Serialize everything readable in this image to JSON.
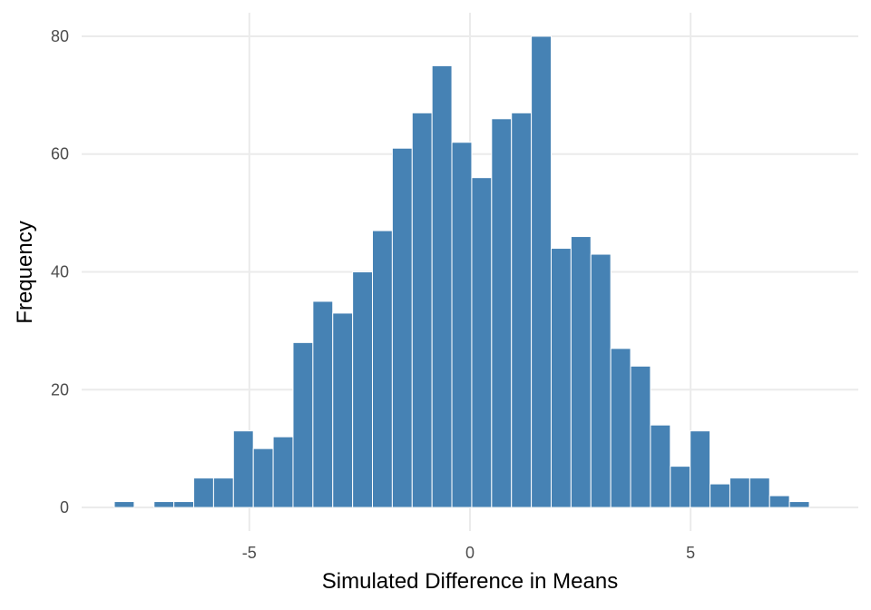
{
  "chart_data": {
    "type": "bar",
    "title": "",
    "xlabel": "Simulated Difference in Means",
    "ylabel": "Frequency",
    "bin_width": 0.45,
    "bins": [
      {
        "x": -8.06,
        "count": 1
      },
      {
        "x": -7.61,
        "count": 0
      },
      {
        "x": -7.16,
        "count": 1
      },
      {
        "x": -6.71,
        "count": 1
      },
      {
        "x": -6.26,
        "count": 5
      },
      {
        "x": -5.81,
        "count": 5
      },
      {
        "x": -5.36,
        "count": 13
      },
      {
        "x": -4.91,
        "count": 10
      },
      {
        "x": -4.46,
        "count": 12
      },
      {
        "x": -4.01,
        "count": 28
      },
      {
        "x": -3.56,
        "count": 35
      },
      {
        "x": -3.11,
        "count": 33
      },
      {
        "x": -2.66,
        "count": 40
      },
      {
        "x": -2.21,
        "count": 47
      },
      {
        "x": -1.76,
        "count": 61
      },
      {
        "x": -1.31,
        "count": 67
      },
      {
        "x": -0.86,
        "count": 75
      },
      {
        "x": -0.41,
        "count": 62
      },
      {
        "x": 0.04,
        "count": 56
      },
      {
        "x": 0.49,
        "count": 66
      },
      {
        "x": 0.94,
        "count": 67
      },
      {
        "x": 1.39,
        "count": 80
      },
      {
        "x": 1.84,
        "count": 44
      },
      {
        "x": 2.29,
        "count": 46
      },
      {
        "x": 2.74,
        "count": 43
      },
      {
        "x": 3.19,
        "count": 27
      },
      {
        "x": 3.64,
        "count": 24
      },
      {
        "x": 4.09,
        "count": 14
      },
      {
        "x": 4.54,
        "count": 7
      },
      {
        "x": 4.99,
        "count": 13
      },
      {
        "x": 5.44,
        "count": 4
      },
      {
        "x": 5.89,
        "count": 5
      },
      {
        "x": 6.34,
        "count": 5
      },
      {
        "x": 6.79,
        "count": 2
      },
      {
        "x": 7.24,
        "count": 1
      }
    ],
    "x_ticks": [
      {
        "value": -5,
        "label": "-5"
      },
      {
        "value": 0,
        "label": "0"
      },
      {
        "value": 5,
        "label": "5"
      }
    ],
    "y_ticks": [
      {
        "value": 0,
        "label": "0"
      },
      {
        "value": 20,
        "label": "20"
      },
      {
        "value": 40,
        "label": "40"
      },
      {
        "value": 60,
        "label": "60"
      },
      {
        "value": 80,
        "label": "80"
      }
    ],
    "xlim": [
      -8.8,
      8.8
    ],
    "ylim": [
      -4,
      84
    ],
    "grid": true,
    "legend": "none",
    "colors": {
      "bar_fill": "#4682b4",
      "bar_outline": "#ffffff",
      "grid": "#ebebeb",
      "tick_text": "#4d4d4d",
      "axis_title": "#000000"
    }
  }
}
